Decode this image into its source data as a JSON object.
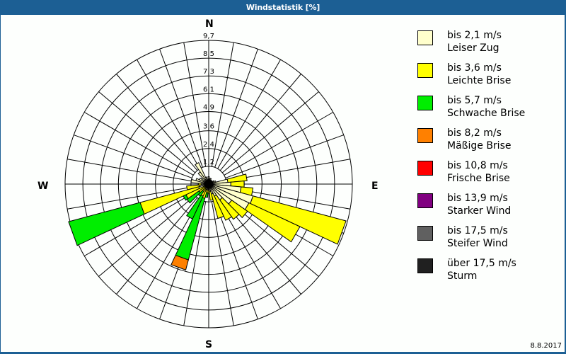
{
  "window": {
    "title": "Windstatistik [%]"
  },
  "compass": {
    "north": "N",
    "east": "E",
    "south": "S",
    "west": "W"
  },
  "footer": {
    "date": "8.8.2017"
  },
  "legend": [
    {
      "range": "bis 2,1 m/s",
      "name": "Leiser Zug",
      "color": "#ffffcc"
    },
    {
      "range": "bis 3,6 m/s",
      "name": "Leichte Brise",
      "color": "#ffff00"
    },
    {
      "range": "bis 5,7 m/s",
      "name": "Schwache Brise",
      "color": "#00ee00"
    },
    {
      "range": "bis 8,2 m/s",
      "name": "Mäßige Brise",
      "color": "#ff8000"
    },
    {
      "range": "bis 10,8 m/s",
      "name": "Frische Brise",
      "color": "#ff0000"
    },
    {
      "range": "bis 13,9 m/s",
      "name": "Starker Wind",
      "color": "#800080"
    },
    {
      "range": "bis 17,5 m/s",
      "name": "Steifer Wind",
      "color": "#606060"
    },
    {
      "range": "über 17,5 m/s",
      "name": "Sturm",
      "color": "#202020"
    }
  ],
  "chart_data": {
    "type": "wind-rose",
    "title": "Windstatistik [%]",
    "unit": "%",
    "rings": [
      "1,2",
      "2,4",
      "3,6",
      "4,9",
      "6,1",
      "7,3",
      "8,5",
      "9,7"
    ],
    "ring_values": [
      1.2,
      2.4,
      3.6,
      4.9,
      6.1,
      7.3,
      8.5,
      9.7
    ],
    "rmax": 9.7,
    "sector_width_deg": 10,
    "series_names": [
      "Leiser Zug",
      "Leichte Brise",
      "Schwache Brise",
      "Mäßige Brise"
    ],
    "sectors": [
      {
        "dir": 0,
        "values": [
          0.5,
          0,
          0,
          0
        ]
      },
      {
        "dir": 10,
        "values": [
          0.4,
          0,
          0,
          0
        ]
      },
      {
        "dir": 20,
        "values": [
          0.4,
          0,
          0,
          0
        ]
      },
      {
        "dir": 30,
        "values": [
          0.3,
          0,
          0,
          0
        ]
      },
      {
        "dir": 40,
        "values": [
          0.3,
          0,
          0,
          0
        ]
      },
      {
        "dir": 50,
        "values": [
          0.3,
          0,
          0,
          0
        ]
      },
      {
        "dir": 60,
        "values": [
          0.4,
          0,
          0,
          0
        ]
      },
      {
        "dir": 70,
        "values": [
          0.5,
          0,
          0,
          0
        ]
      },
      {
        "dir": 80,
        "values": [
          1.3,
          1.3,
          0,
          0
        ]
      },
      {
        "dir": 90,
        "values": [
          1.5,
          0.9,
          0,
          0
        ]
      },
      {
        "dir": 100,
        "values": [
          2.2,
          0.8,
          0,
          0
        ]
      },
      {
        "dir": 110,
        "values": [
          3.1,
          6.5,
          0,
          0
        ]
      },
      {
        "dir": 120,
        "values": [
          3.0,
          3.8,
          0,
          0
        ]
      },
      {
        "dir": 130,
        "values": [
          1.9,
          1.3,
          0,
          0
        ]
      },
      {
        "dir": 140,
        "values": [
          1.3,
          1.6,
          0,
          0
        ]
      },
      {
        "dir": 150,
        "values": [
          0.9,
          1.8,
          0,
          0
        ]
      },
      {
        "dir": 160,
        "values": [
          0.7,
          1.7,
          0,
          0
        ]
      },
      {
        "dir": 170,
        "values": [
          0.5,
          0.6,
          0,
          0
        ]
      },
      {
        "dir": 180,
        "values": [
          0.4,
          0.2,
          0,
          0
        ]
      },
      {
        "dir": 190,
        "values": [
          0.4,
          0.2,
          0.3,
          0
        ]
      },
      {
        "dir": 200,
        "values": [
          0.4,
          0.6,
          4.3,
          0.7
        ]
      },
      {
        "dir": 210,
        "values": [
          0.4,
          0.5,
          1.7,
          0
        ]
      },
      {
        "dir": 220,
        "values": [
          0.3,
          0.3,
          0.4,
          0
        ]
      },
      {
        "dir": 230,
        "values": [
          0.3,
          0.5,
          1.0,
          0
        ]
      },
      {
        "dir": 240,
        "values": [
          0.3,
          1.4,
          0.2,
          0
        ]
      },
      {
        "dir": 250,
        "values": [
          0.7,
          4.1,
          5.0,
          0
        ]
      },
      {
        "dir": 260,
        "values": [
          0.6,
          0.9,
          0,
          0
        ]
      },
      {
        "dir": 270,
        "values": [
          0.5,
          0.2,
          0,
          0
        ]
      },
      {
        "dir": 280,
        "values": [
          1.2,
          0,
          0,
          0
        ]
      },
      {
        "dir": 290,
        "values": [
          0.9,
          0,
          0,
          0
        ]
      },
      {
        "dir": 300,
        "values": [
          0.7,
          0,
          0,
          0
        ]
      },
      {
        "dir": 310,
        "values": [
          0.6,
          0,
          0,
          0
        ]
      },
      {
        "dir": 320,
        "values": [
          1.0,
          0,
          0,
          0
        ]
      },
      {
        "dir": 330,
        "values": [
          1.6,
          0,
          0,
          0
        ]
      },
      {
        "dir": 340,
        "values": [
          0.5,
          0,
          0,
          0
        ]
      },
      {
        "dir": 350,
        "values": [
          0.3,
          0,
          0,
          0
        ]
      }
    ],
    "grid": true,
    "legend_position": "right"
  }
}
